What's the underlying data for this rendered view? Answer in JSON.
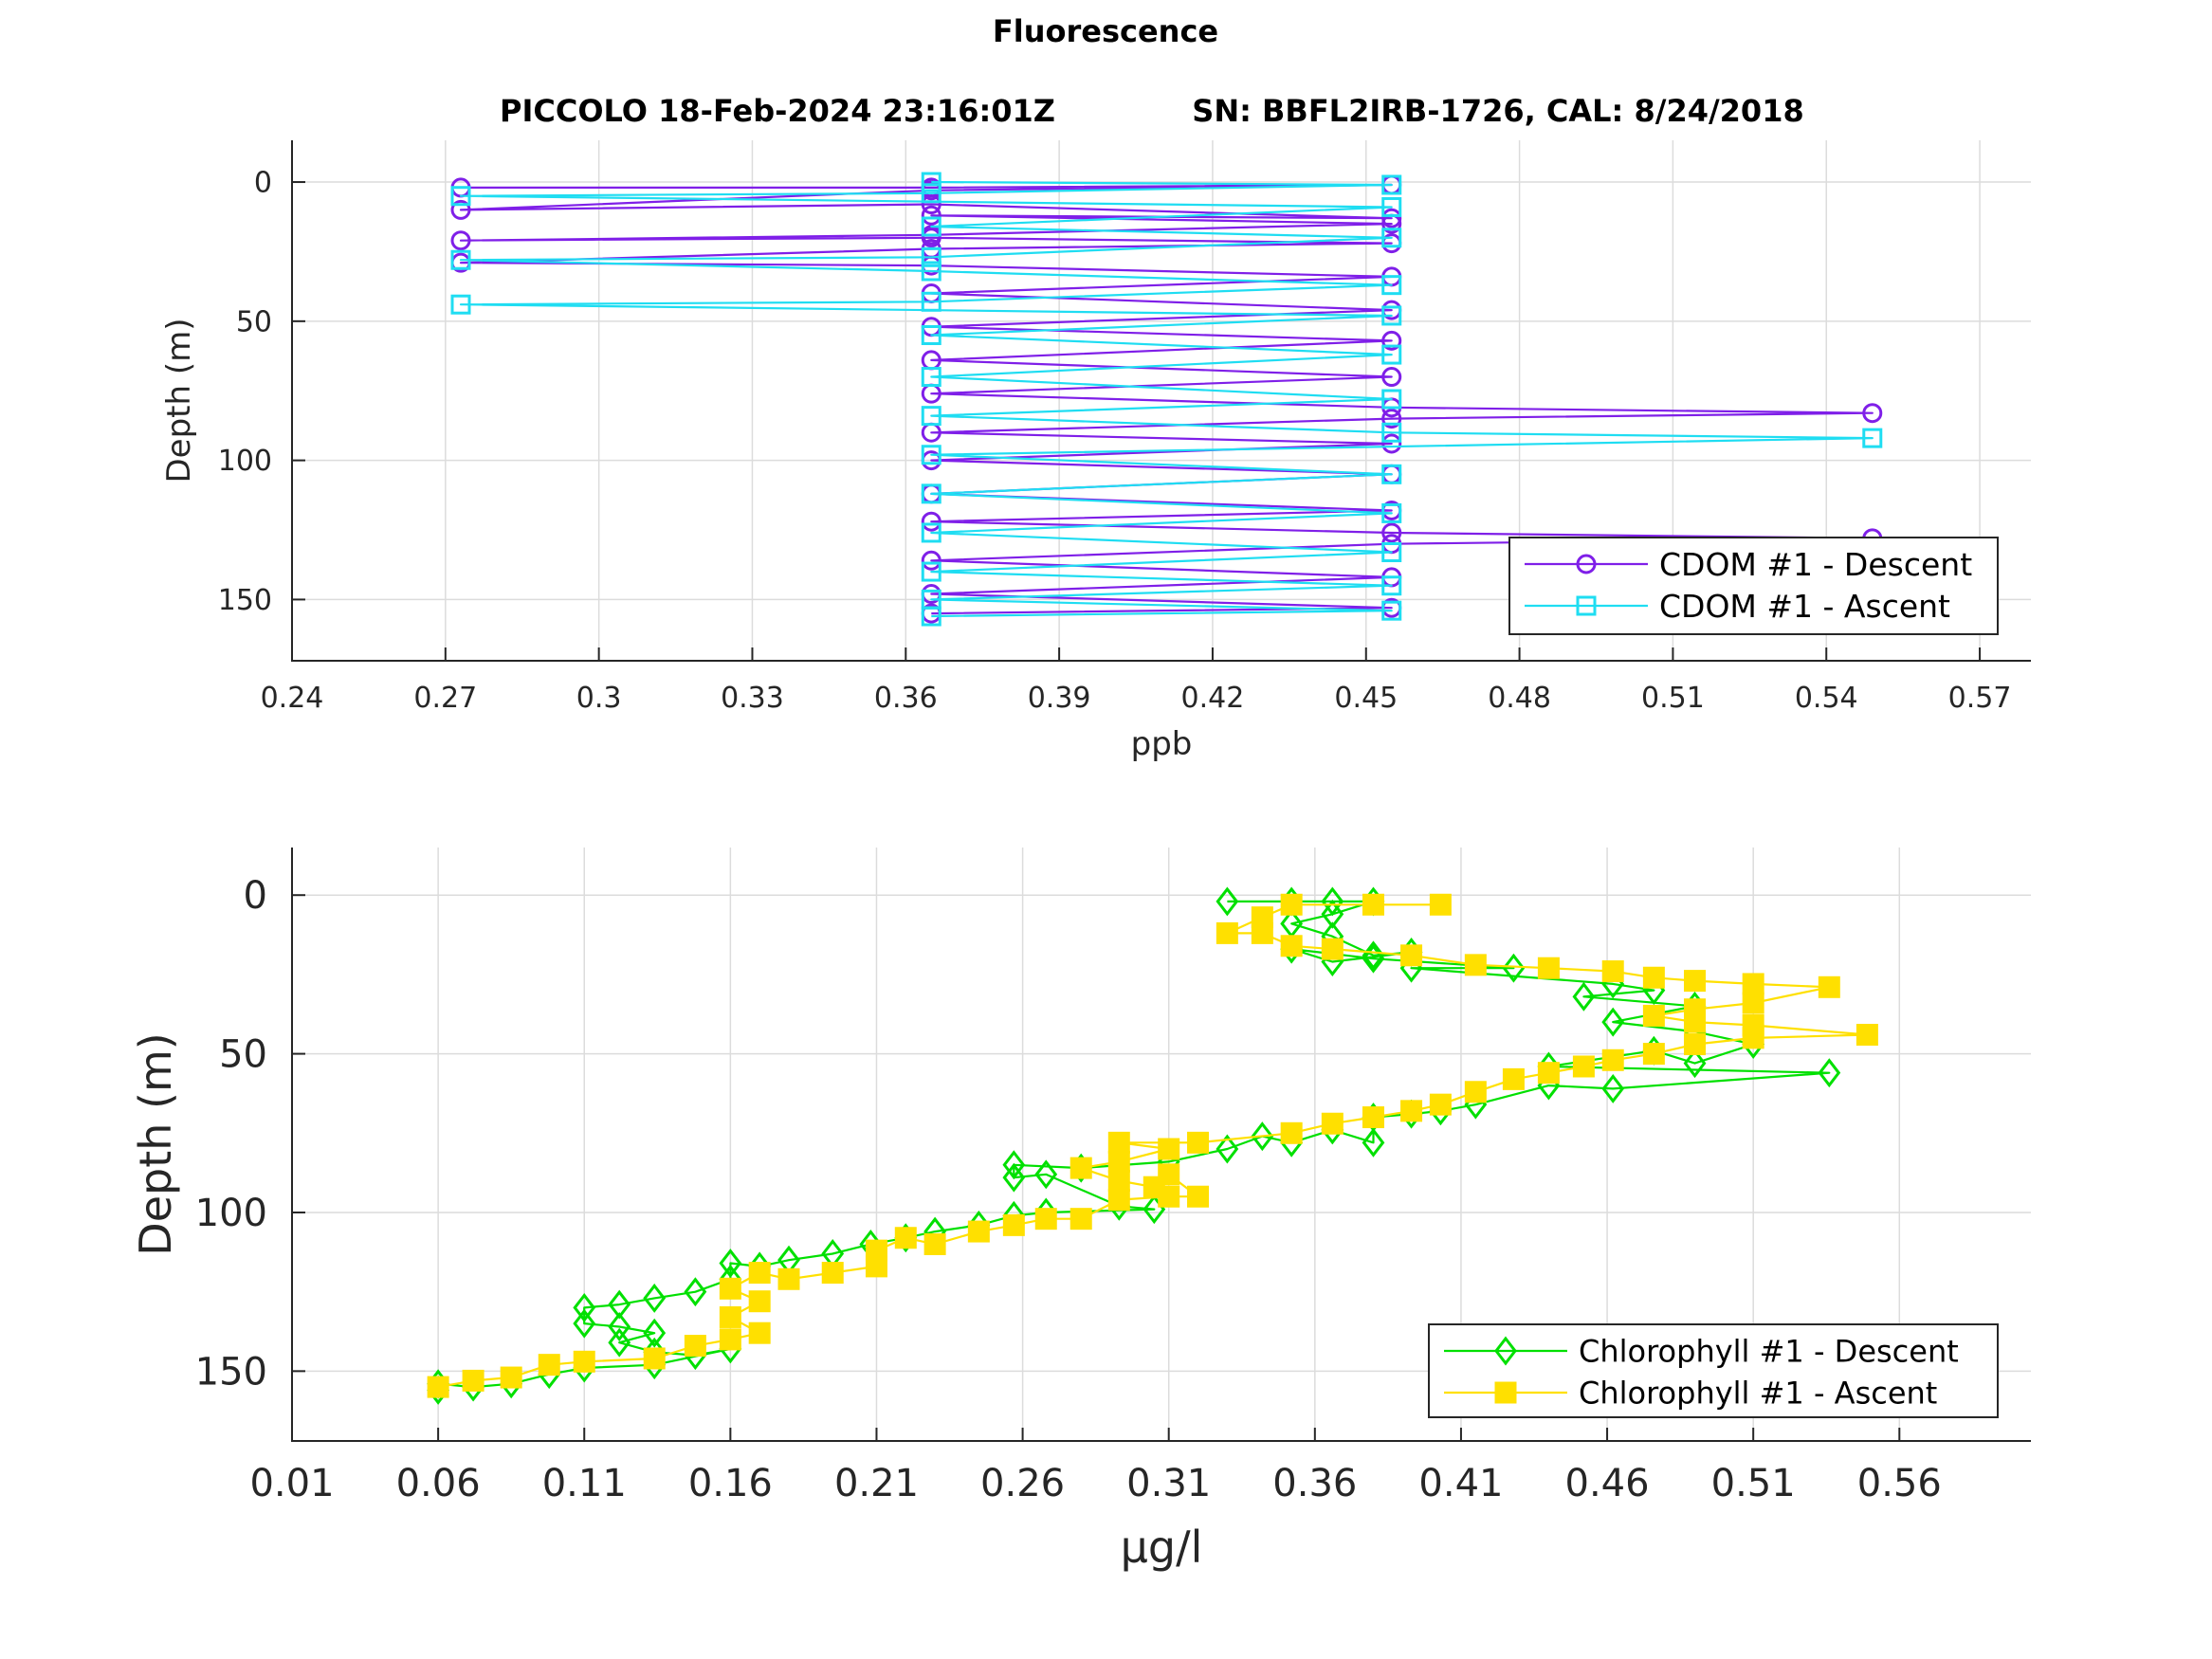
{
  "figure": {
    "title": "Fluorescence",
    "subtitle_left": "PICCOLO 18-Feb-2024 23:16:01Z",
    "subtitle_right": "SN: BBFL2IRB-1726, CAL: 8/24/2018"
  },
  "chart_data": [
    {
      "type": "line",
      "xlabel": "ppb",
      "ylabel": "Depth (m)",
      "xlim": [
        0.24,
        0.58
      ],
      "ylim": [
        -15,
        172
      ],
      "y_reversed": true,
      "xticks": [
        0.24,
        0.27,
        0.3,
        0.33,
        0.36,
        0.39,
        0.42,
        0.45,
        0.48,
        0.51,
        0.54,
        0.57
      ],
      "xtick_labels": [
        "0.24",
        "0.27",
        "0.3",
        "0.33",
        "0.36",
        "0.39",
        "0.42",
        "0.45",
        "0.48",
        "0.51",
        "0.54",
        "0.57"
      ],
      "yticks": [
        0,
        50,
        100,
        150
      ],
      "ytick_labels": [
        "0",
        "50",
        "100",
        "150"
      ],
      "grid": true,
      "legend_position": "bottom-right",
      "series": [
        {
          "name": "CDOM #1 - Descent",
          "color": "#7F1FE8",
          "marker": "circle",
          "points": [
            [
              0.273,
              2
            ],
            [
              0.365,
              2
            ],
            [
              0.455,
              1
            ],
            [
              0.365,
              3
            ],
            [
              0.273,
              10
            ],
            [
              0.365,
              8
            ],
            [
              0.455,
              13
            ],
            [
              0.365,
              12
            ],
            [
              0.455,
              15
            ],
            [
              0.365,
              19
            ],
            [
              0.273,
              21
            ],
            [
              0.365,
              20
            ],
            [
              0.455,
              22
            ],
            [
              0.365,
              24
            ],
            [
              0.273,
              29
            ],
            [
              0.365,
              30
            ],
            [
              0.455,
              34
            ],
            [
              0.365,
              40
            ],
            [
              0.455,
              46
            ],
            [
              0.365,
              52
            ],
            [
              0.455,
              57
            ],
            [
              0.365,
              64
            ],
            [
              0.455,
              70
            ],
            [
              0.365,
              76
            ],
            [
              0.455,
              81
            ],
            [
              0.549,
              83
            ],
            [
              0.455,
              85
            ],
            [
              0.365,
              90
            ],
            [
              0.455,
              94
            ],
            [
              0.365,
              100
            ],
            [
              0.455,
              105
            ],
            [
              0.365,
              112
            ],
            [
              0.455,
              118
            ],
            [
              0.365,
              122
            ],
            [
              0.455,
              126
            ],
            [
              0.549,
              128
            ],
            [
              0.455,
              130
            ],
            [
              0.365,
              136
            ],
            [
              0.455,
              142
            ],
            [
              0.365,
              148
            ],
            [
              0.455,
              153
            ],
            [
              0.365,
              155
            ]
          ]
        },
        {
          "name": "CDOM #1 - Ascent",
          "color": "#1FDDF2",
          "marker": "square",
          "points": [
            [
              0.365,
              156
            ],
            [
              0.455,
              154
            ],
            [
              0.365,
              150
            ],
            [
              0.455,
              145
            ],
            [
              0.365,
              140
            ],
            [
              0.455,
              133
            ],
            [
              0.365,
              126
            ],
            [
              0.455,
              119
            ],
            [
              0.365,
              112
            ],
            [
              0.455,
              105
            ],
            [
              0.365,
              98
            ],
            [
              0.549,
              92
            ],
            [
              0.455,
              90
            ],
            [
              0.365,
              84
            ],
            [
              0.455,
              78
            ],
            [
              0.365,
              70
            ],
            [
              0.455,
              62
            ],
            [
              0.365,
              55
            ],
            [
              0.455,
              48
            ],
            [
              0.273,
              44
            ],
            [
              0.365,
              43
            ],
            [
              0.455,
              37
            ],
            [
              0.365,
              32
            ],
            [
              0.273,
              28
            ],
            [
              0.365,
              27
            ],
            [
              0.455,
              20
            ],
            [
              0.365,
              16
            ],
            [
              0.455,
              9
            ],
            [
              0.273,
              5
            ],
            [
              0.365,
              4
            ],
            [
              0.455,
              1
            ],
            [
              0.365,
              0
            ]
          ]
        }
      ]
    },
    {
      "type": "line",
      "xlabel": "μg/l",
      "ylabel": "Depth (m)",
      "xlim": [
        0.01,
        0.605
      ],
      "ylim": [
        -15,
        172
      ],
      "y_reversed": true,
      "xticks": [
        0.01,
        0.06,
        0.11,
        0.16,
        0.21,
        0.26,
        0.31,
        0.36,
        0.41,
        0.46,
        0.51,
        0.56
      ],
      "xtick_labels": [
        "0.01",
        "0.06",
        "0.11",
        "0.16",
        "0.21",
        "0.26",
        "0.31",
        "0.36",
        "0.41",
        "0.46",
        "0.51",
        "0.56"
      ],
      "yticks": [
        0,
        50,
        100,
        150
      ],
      "ytick_labels": [
        "0",
        "50",
        "100",
        "150"
      ],
      "grid": true,
      "legend_position": "bottom-right",
      "series": [
        {
          "name": "Chlorophyll #1 - Descent",
          "color": "#00E000",
          "marker": "diamond",
          "points": [
            [
              0.33,
              2
            ],
            [
              0.352,
              2
            ],
            [
              0.366,
              2
            ],
            [
              0.38,
              2
            ],
            [
              0.366,
              6
            ],
            [
              0.352,
              9
            ],
            [
              0.366,
              13
            ],
            [
              0.38,
              19
            ],
            [
              0.393,
              18
            ],
            [
              0.366,
              21
            ],
            [
              0.352,
              17
            ],
            [
              0.38,
              20
            ],
            [
              0.428,
              23
            ],
            [
              0.393,
              23
            ],
            [
              0.462,
              28
            ],
            [
              0.476,
              30
            ],
            [
              0.452,
              32
            ],
            [
              0.49,
              35
            ],
            [
              0.462,
              40
            ],
            [
              0.49,
              43
            ],
            [
              0.51,
              47
            ],
            [
              0.49,
              53
            ],
            [
              0.476,
              49
            ],
            [
              0.44,
              54
            ],
            [
              0.536,
              56
            ],
            [
              0.462,
              61
            ],
            [
              0.44,
              60
            ],
            [
              0.415,
              66
            ],
            [
              0.403,
              68
            ],
            [
              0.393,
              69
            ],
            [
              0.38,
              70
            ],
            [
              0.38,
              78
            ],
            [
              0.366,
              74
            ],
            [
              0.352,
              78
            ],
            [
              0.342,
              76
            ],
            [
              0.33,
              80
            ],
            [
              0.31,
              84
            ],
            [
              0.28,
              86
            ],
            [
              0.257,
              85
            ],
            [
              0.257,
              89
            ],
            [
              0.268,
              88
            ],
            [
              0.293,
              98
            ],
            [
              0.305,
              99
            ],
            [
              0.268,
              100
            ],
            [
              0.257,
              101
            ],
            [
              0.245,
              104
            ],
            [
              0.23,
              106
            ],
            [
              0.22,
              108
            ],
            [
              0.208,
              110
            ],
            [
              0.195,
              113
            ],
            [
              0.18,
              115
            ],
            [
              0.17,
              117
            ],
            [
              0.16,
              116
            ],
            [
              0.16,
              121
            ],
            [
              0.148,
              125
            ],
            [
              0.134,
              127
            ],
            [
              0.122,
              129
            ],
            [
              0.11,
              130
            ],
            [
              0.11,
              135
            ],
            [
              0.122,
              136
            ],
            [
              0.134,
              138
            ],
            [
              0.122,
              141
            ],
            [
              0.134,
              144
            ],
            [
              0.148,
              145
            ],
            [
              0.16,
              143
            ],
            [
              0.134,
              148
            ],
            [
              0.11,
              149
            ],
            [
              0.098,
              151
            ],
            [
              0.085,
              154
            ],
            [
              0.072,
              155
            ],
            [
              0.06,
              154
            ],
            [
              0.06,
              156
            ]
          ]
        },
        {
          "name": "Chlorophyll #1 - Ascent",
          "color": "#FFE000",
          "marker": "square",
          "points": [
            [
              0.06,
              155
            ],
            [
              0.072,
              153
            ],
            [
              0.085,
              152
            ],
            [
              0.098,
              148
            ],
            [
              0.11,
              147
            ],
            [
              0.134,
              146
            ],
            [
              0.148,
              142
            ],
            [
              0.16,
              140
            ],
            [
              0.17,
              138
            ],
            [
              0.16,
              133
            ],
            [
              0.17,
              128
            ],
            [
              0.16,
              124
            ],
            [
              0.17,
              119
            ],
            [
              0.18,
              121
            ],
            [
              0.195,
              119
            ],
            [
              0.21,
              117
            ],
            [
              0.21,
              112
            ],
            [
              0.22,
              108
            ],
            [
              0.23,
              110
            ],
            [
              0.245,
              106
            ],
            [
              0.257,
              104
            ],
            [
              0.268,
              102
            ],
            [
              0.28,
              102
            ],
            [
              0.293,
              96
            ],
            [
              0.31,
              95
            ],
            [
              0.32,
              95
            ],
            [
              0.31,
              88
            ],
            [
              0.305,
              92
            ],
            [
              0.293,
              90
            ],
            [
              0.28,
              86
            ],
            [
              0.293,
              84
            ],
            [
              0.31,
              80
            ],
            [
              0.293,
              78
            ],
            [
              0.32,
              78
            ],
            [
              0.352,
              75
            ],
            [
              0.366,
              72
            ],
            [
              0.38,
              70
            ],
            [
              0.393,
              68
            ],
            [
              0.403,
              66
            ],
            [
              0.415,
              62
            ],
            [
              0.428,
              58
            ],
            [
              0.44,
              56
            ],
            [
              0.452,
              54
            ],
            [
              0.462,
              52
            ],
            [
              0.476,
              50
            ],
            [
              0.49,
              47
            ],
            [
              0.51,
              45
            ],
            [
              0.549,
              44
            ],
            [
              0.51,
              41
            ],
            [
              0.49,
              40
            ],
            [
              0.476,
              38
            ],
            [
              0.49,
              36
            ],
            [
              0.51,
              34
            ],
            [
              0.536,
              29
            ],
            [
              0.51,
              28
            ],
            [
              0.49,
              27
            ],
            [
              0.476,
              26
            ],
            [
              0.462,
              24
            ],
            [
              0.44,
              23
            ],
            [
              0.415,
              22
            ],
            [
              0.393,
              19
            ],
            [
              0.366,
              17
            ],
            [
              0.352,
              16
            ],
            [
              0.342,
              12
            ],
            [
              0.33,
              12
            ],
            [
              0.342,
              7
            ],
            [
              0.352,
              3
            ],
            [
              0.38,
              3
            ],
            [
              0.403,
              3
            ]
          ]
        }
      ]
    }
  ]
}
